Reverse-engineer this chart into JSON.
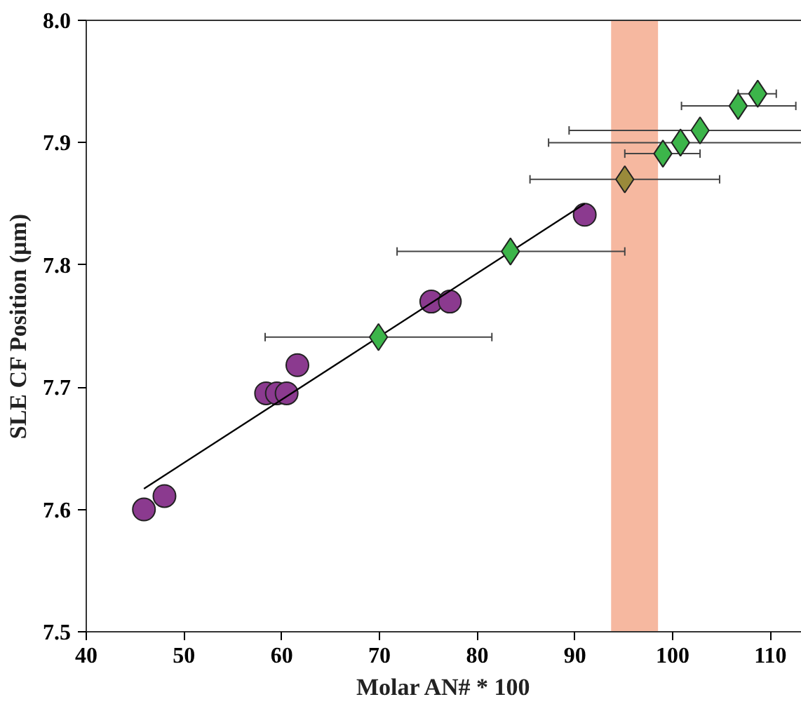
{
  "chart_data": {
    "type": "scatter",
    "xlabel": "Molar AN# * 100",
    "ylabel": "SLE CF Position (μm)",
    "xlim": [
      40,
      113.2
    ],
    "ylim": [
      7.5,
      8.0
    ],
    "xticks": [
      40,
      50,
      60,
      70,
      80,
      90,
      100,
      110
    ],
    "yticks": [
      7.5,
      7.6,
      7.7,
      7.8,
      7.9,
      {
        "value": 8.0,
        "label": "8.0"
      }
    ],
    "grid": false,
    "bands": [
      {
        "axis": "x",
        "from": 93.7,
        "to": 98.5,
        "color": "#f6b8a0"
      }
    ],
    "series": [
      {
        "marker": "circle",
        "color": "#8b3a8f",
        "x": [
          45.9,
          48.0,
          58.4,
          59.5,
          60.5,
          61.6,
          75.3,
          77.2,
          91.0
        ],
        "values": [
          7.6,
          7.611,
          7.695,
          7.695,
          7.695,
          7.718,
          7.77,
          7.77,
          7.841
        ]
      },
      {
        "type": "line",
        "color": "#000000",
        "x": [
          45.9,
          91.0
        ],
        "values": [
          7.617,
          7.85
        ]
      },
      {
        "marker": "diamond",
        "color": "#3cb54a",
        "x": [
          69.9,
          83.4,
          99.0,
          100.8,
          102.8,
          106.7,
          108.7
        ],
        "values": [
          7.741,
          7.811,
          7.891,
          7.9,
          7.91,
          7.93,
          7.94
        ],
        "xerrors": [
          [
            58.3,
            81.5
          ],
          [
            71.8,
            95.1
          ],
          [
            95.1,
            102.8
          ],
          [
            87.3,
            113.2
          ],
          [
            89.4,
            113.2
          ],
          [
            100.9,
            112.6
          ],
          [
            106.7,
            110.6
          ]
        ]
      },
      {
        "marker": "diamond",
        "color": "#9a8a3a",
        "x": [
          95.1
        ],
        "values": [
          7.87
        ],
        "xerrors": [
          [
            85.4,
            104.8
          ]
        ]
      }
    ]
  }
}
